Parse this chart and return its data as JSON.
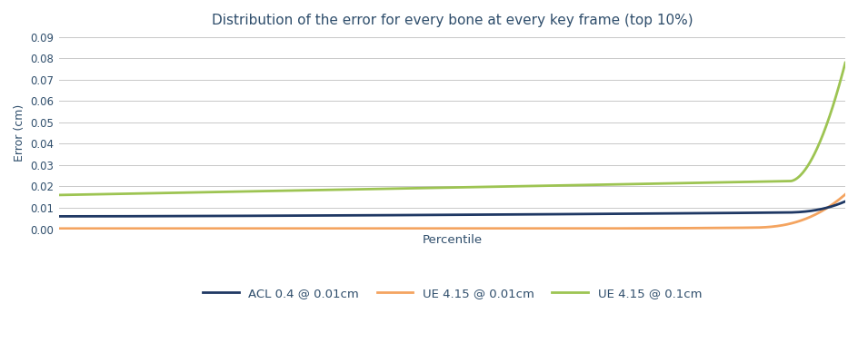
{
  "title": "Distribution of the error for every bone at every key frame (top 10%)",
  "xlabel": "Percentile",
  "ylabel": "Error (cm)",
  "ylim": [
    0,
    0.09
  ],
  "yticks": [
    0,
    0.01,
    0.02,
    0.03,
    0.04,
    0.05,
    0.06,
    0.07,
    0.08,
    0.09
  ],
  "background_color": "#ffffff",
  "grid_color": "#c8c8c8",
  "title_color": "#2e4d6b",
  "label_color": "#2e4d6b",
  "legend": [
    {
      "label": "ACL 0.4 @ 0.01cm",
      "color": "#1f3864",
      "linewidth": 2.0
    },
    {
      "label": "UE 4.15 @ 0.01cm",
      "color": "#f4a460",
      "linewidth": 2.0
    },
    {
      "label": "UE 4.15 @ 0.1cm",
      "color": "#9dc452",
      "linewidth": 2.0
    }
  ],
  "n_points": 1000
}
